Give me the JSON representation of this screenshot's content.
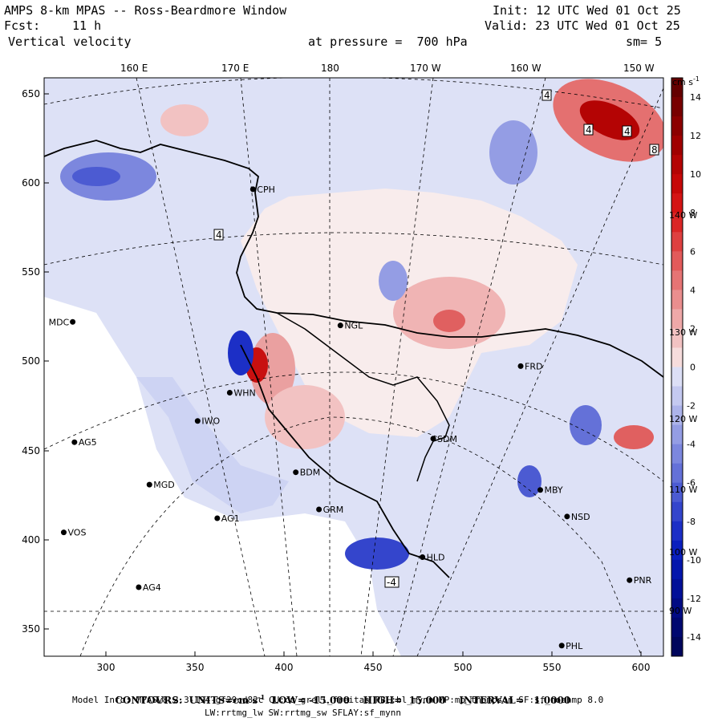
{
  "header": {
    "title": "AMPS 8-km MPAS -- Ross-Beardmore Window",
    "fcst_label": "Fcst:",
    "fcst_value": "11 h",
    "field": "Vertical velocity",
    "init": "Init: 12 UTC Wed 01 Oct 25",
    "valid": "Valid: 23 UTC Wed 01 Oct 25",
    "pressure": "at pressure =  700 hPa",
    "smooth": "sm= 5"
  },
  "axes": {
    "top_lon_labels": [
      "160 E",
      "170 E",
      "180",
      "170 W",
      "160 W",
      "150 W"
    ],
    "x_ticks": [
      "300",
      "350",
      "400",
      "450",
      "500",
      "550",
      "600"
    ],
    "y_ticks": [
      "650",
      "600",
      "550",
      "500",
      "450",
      "400",
      "350"
    ],
    "x_range": [
      263,
      610
    ],
    "y_range": [
      333,
      660
    ]
  },
  "colorbar": {
    "units_label": "cm s",
    "units_exp": "-1",
    "ticks": [
      "14",
      "12",
      "10",
      "8",
      "6",
      "4",
      "2",
      "0",
      "-2",
      "-4",
      "-6",
      "-8",
      "-10",
      "-12",
      "-14"
    ],
    "range": [
      -15,
      15
    ],
    "pos_colors": [
      "#f6dcdc",
      "#f2c2c2",
      "#eea8a8",
      "#ea8e8e",
      "#e67474",
      "#e25a5a",
      "#de4040",
      "#da2626",
      "#d41414",
      "#c60808",
      "#b40404",
      "#a00000",
      "#8c0000",
      "#780000",
      "#640000"
    ],
    "neg_colors": [
      "#dcdff6",
      "#c4c9f0",
      "#acb3ea",
      "#949de4",
      "#7c87de",
      "#6471d8",
      "#4c5bd2",
      "#3445cc",
      "#1c2fc6",
      "#0a1fbe",
      "#0416ac",
      "#021098",
      "#010b84",
      "#000870",
      "#00065c"
    ],
    "overlap_lon_labels": [
      "140 W",
      "130 W",
      "120 W",
      "110 W",
      "100 W",
      "90 W"
    ]
  },
  "stations": [
    {
      "code": "CPH",
      "x": 380,
      "y": 597
    },
    {
      "code": "MDC",
      "x": 279,
      "y": 522
    },
    {
      "code": "NGL",
      "x": 429,
      "y": 520
    },
    {
      "code": "FRD",
      "x": 530,
      "y": 497
    },
    {
      "code": "WHN",
      "x": 367,
      "y": 482
    },
    {
      "code": "IWO",
      "x": 349,
      "y": 466
    },
    {
      "code": "SDM",
      "x": 481,
      "y": 456
    },
    {
      "code": "AG5",
      "x": 280,
      "y": 454
    },
    {
      "code": "BDM",
      "x": 404,
      "y": 437
    },
    {
      "code": "MGD",
      "x": 322,
      "y": 430
    },
    {
      "code": "GRM",
      "x": 417,
      "y": 416
    },
    {
      "code": "MBY",
      "x": 541,
      "y": 427
    },
    {
      "code": "AG1",
      "x": 360,
      "y": 411
    },
    {
      "code": "NSD",
      "x": 556,
      "y": 412
    },
    {
      "code": "VOS",
      "x": 274,
      "y": 403
    },
    {
      "code": "HLD",
      "x": 475,
      "y": 389
    },
    {
      "code": "AG4",
      "x": 316,
      "y": 372
    },
    {
      "code": "PNR",
      "x": 591,
      "y": 376
    },
    {
      "code": "PHL",
      "x": 553,
      "y": 339
    }
  ],
  "contour_box_labels": [
    "4",
    "4",
    "4",
    "4",
    "8",
    "-4"
  ],
  "footer": {
    "contours": "CONTOURS:  UNITS=cm s",
    "contours_exp": "-1",
    "low": "LOW= -15.000",
    "high": "HIGH=  15.000",
    "interval": "INTERVAL=   1.0000",
    "model_info": "Model Info: MPASv8.2.3-194-gf29cd82c CU:cu_grell_freitas PBL:bl_mynn MP:mp_thompson SF:sf_noahmp 8.0",
    "model_info2": "LW:rrtmg_lw SW:rrtmg_sw SFLAY:sf_mynn"
  }
}
